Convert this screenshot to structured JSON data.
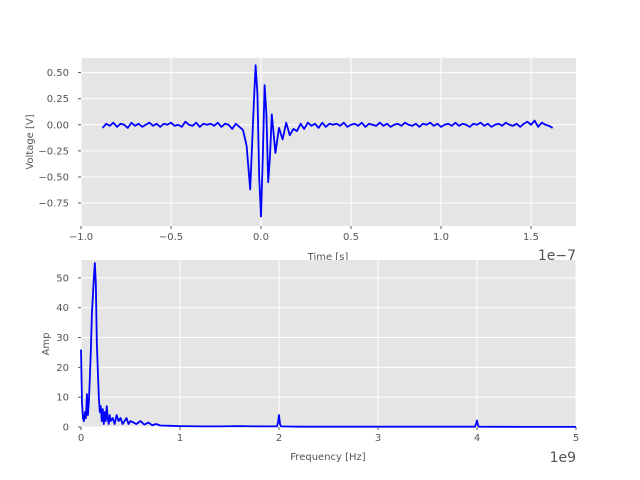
{
  "chart_data": [
    {
      "type": "line",
      "title": "",
      "xlabel": "Time [s]",
      "ylabel": "Voltage [V]",
      "x_offset_label": "1e−7",
      "xlim": [
        -1.0,
        1.75
      ],
      "ylim": [
        -0.97,
        0.64
      ],
      "x_ticks": [
        -1.0,
        -0.5,
        0.0,
        0.5,
        1.0,
        1.5
      ],
      "x_tick_labels": [
        "−1.0",
        "−0.5",
        "0.0",
        "0.5",
        "1.0",
        "1.5"
      ],
      "y_ticks": [
        -0.75,
        -0.5,
        -0.25,
        0.0,
        0.25,
        0.5
      ],
      "y_tick_labels": [
        "−0.75",
        "−0.50",
        "−0.25",
        "0.00",
        "0.25",
        "0.50"
      ],
      "grid": true,
      "line_color": "#0000ff",
      "background": "#e5e5e5",
      "series": [
        {
          "x": [
            -0.88,
            -0.86,
            -0.84,
            -0.82,
            -0.8,
            -0.78,
            -0.76,
            -0.74,
            -0.72,
            -0.7,
            -0.68,
            -0.66,
            -0.64,
            -0.62,
            -0.6,
            -0.58,
            -0.56,
            -0.54,
            -0.52,
            -0.5,
            -0.48,
            -0.46,
            -0.44,
            -0.42,
            -0.4,
            -0.38,
            -0.36,
            -0.34,
            -0.32,
            -0.3,
            -0.28,
            -0.26,
            -0.24,
            -0.22,
            -0.2,
            -0.18,
            -0.16,
            -0.14,
            -0.12,
            -0.1,
            -0.08,
            -0.06,
            -0.04,
            -0.03,
            -0.02,
            -0.01,
            0.0,
            0.01,
            0.02,
            0.03,
            0.04,
            0.05,
            0.06,
            0.08,
            0.1,
            0.12,
            0.14,
            0.16,
            0.18,
            0.2,
            0.22,
            0.24,
            0.26,
            0.28,
            0.3,
            0.32,
            0.34,
            0.36,
            0.38,
            0.4,
            0.42,
            0.44,
            0.46,
            0.48,
            0.5,
            0.52,
            0.54,
            0.56,
            0.58,
            0.6,
            0.62,
            0.64,
            0.66,
            0.68,
            0.7,
            0.72,
            0.74,
            0.76,
            0.78,
            0.8,
            0.82,
            0.84,
            0.86,
            0.88,
            0.9,
            0.92,
            0.94,
            0.96,
            0.98,
            1.0,
            1.02,
            1.04,
            1.06,
            1.08,
            1.1,
            1.12,
            1.14,
            1.16,
            1.18,
            1.2,
            1.22,
            1.24,
            1.26,
            1.28,
            1.3,
            1.32,
            1.34,
            1.36,
            1.38,
            1.4,
            1.42,
            1.44,
            1.46,
            1.48,
            1.5,
            1.52,
            1.54,
            1.56,
            1.58,
            1.6,
            1.62
          ],
          "y": [
            -0.03,
            0.01,
            -0.01,
            0.02,
            -0.02,
            0.01,
            0.0,
            -0.03,
            0.02,
            -0.01,
            0.01,
            -0.02,
            0.0,
            0.02,
            -0.01,
            0.01,
            -0.02,
            0.01,
            0.0,
            0.02,
            -0.01,
            0.0,
            -0.02,
            0.03,
            0.0,
            -0.01,
            0.02,
            -0.02,
            0.01,
            0.0,
            0.01,
            -0.01,
            0.02,
            -0.02,
            0.01,
            0.0,
            -0.04,
            0.01,
            -0.02,
            -0.05,
            -0.2,
            -0.62,
            0.2,
            0.57,
            0.3,
            -0.5,
            -0.88,
            -0.3,
            0.38,
            0.1,
            -0.55,
            -0.3,
            0.1,
            -0.27,
            -0.03,
            -0.14,
            0.02,
            -0.1,
            -0.04,
            -0.06,
            0.01,
            -0.04,
            0.02,
            -0.01,
            0.01,
            -0.03,
            0.02,
            -0.02,
            0.01,
            0.0,
            0.01,
            -0.01,
            0.02,
            -0.02,
            0.0,
            0.01,
            -0.01,
            0.02,
            -0.02,
            0.01,
            0.0,
            -0.01,
            0.02,
            -0.01,
            0.01,
            -0.02,
            0.0,
            0.01,
            -0.01,
            0.02,
            0.0,
            -0.01,
            0.01,
            -0.02,
            0.01,
            0.0,
            0.02,
            -0.01,
            0.01,
            -0.02,
            0.0,
            0.01,
            -0.01,
            0.02,
            -0.01,
            0.01,
            0.0,
            -0.02,
            0.01,
            0.0,
            0.02,
            -0.01,
            0.01,
            -0.02,
            0.0,
            0.01,
            -0.01,
            0.02,
            0.0,
            -0.01,
            0.01,
            -0.02,
            0.01,
            0.03,
            0.0,
            0.04,
            -0.02,
            0.02,
            0.0,
            -0.01,
            -0.03
          ]
        }
      ]
    },
    {
      "type": "line",
      "title": "",
      "xlabel": "Frequency [Hz]",
      "ylabel": "Amp",
      "x_offset_label": "1e9",
      "xlim": [
        0,
        5
      ],
      "ylim": [
        0,
        56
      ],
      "x_ticks": [
        0,
        1,
        2,
        3,
        4,
        5
      ],
      "x_tick_labels": [
        "0",
        "1",
        "2",
        "3",
        "4",
        "5"
      ],
      "y_ticks": [
        0,
        10,
        20,
        30,
        40,
        50
      ],
      "y_tick_labels": [
        "0",
        "10",
        "20",
        "30",
        "40",
        "50"
      ],
      "grid": true,
      "line_color": "#0000ff",
      "background": "#e5e5e5",
      "series": [
        {
          "x": [
            0.0,
            0.01,
            0.02,
            0.03,
            0.04,
            0.05,
            0.06,
            0.07,
            0.08,
            0.09,
            0.1,
            0.11,
            0.12,
            0.13,
            0.14,
            0.15,
            0.16,
            0.17,
            0.18,
            0.19,
            0.2,
            0.21,
            0.22,
            0.23,
            0.24,
            0.25,
            0.26,
            0.27,
            0.28,
            0.29,
            0.3,
            0.32,
            0.34,
            0.36,
            0.38,
            0.4,
            0.42,
            0.44,
            0.46,
            0.48,
            0.5,
            0.53,
            0.56,
            0.6,
            0.64,
            0.68,
            0.72,
            0.76,
            0.8,
            0.9,
            1.0,
            1.2,
            1.4,
            1.6,
            1.8,
            1.98,
            1.99,
            2.0,
            2.01,
            2.02,
            2.2,
            2.5,
            3.0,
            3.5,
            3.98,
            3.99,
            4.0,
            4.01,
            4.02,
            4.5,
            5.0
          ],
          "y": [
            26,
            8,
            3,
            2,
            5,
            3,
            11,
            4,
            9,
            17,
            26,
            38,
            44,
            50,
            55,
            48,
            28,
            19,
            10,
            5,
            7,
            2,
            6,
            1,
            5,
            2,
            7,
            3,
            1,
            4,
            2,
            3,
            1,
            4,
            2,
            3,
            1,
            2,
            3,
            1,
            2,
            1.5,
            1,
            2,
            0.8,
            1.5,
            0.6,
            1,
            0.5,
            0.4,
            0.3,
            0.2,
            0.2,
            0.3,
            0.2,
            0.2,
            1.5,
            4,
            1,
            0.2,
            0.1,
            0.1,
            0.1,
            0.1,
            0.1,
            1,
            2.2,
            0.5,
            0.1,
            0.05,
            0.05
          ]
        }
      ]
    }
  ]
}
